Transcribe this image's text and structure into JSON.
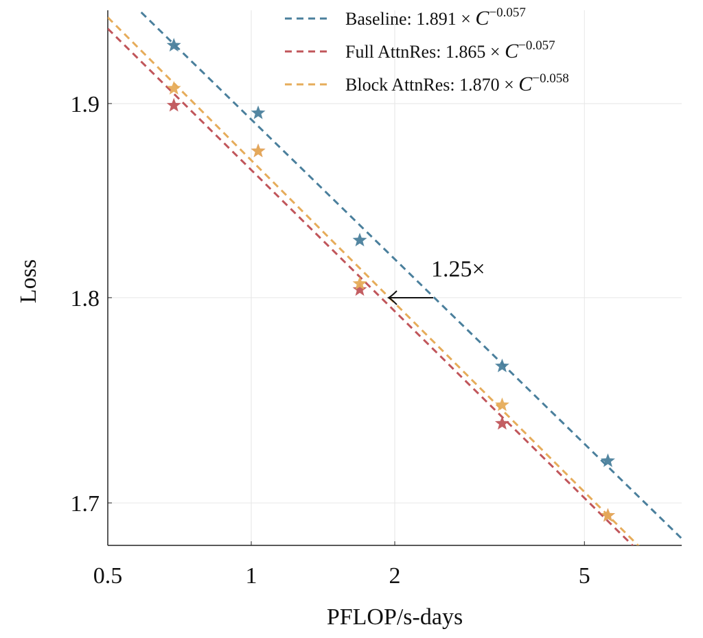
{
  "chart_data": {
    "type": "scatter",
    "x_label": "PFLOP/s-days",
    "y_label": "Loss",
    "x": [
      0.688,
      1.034,
      1.689,
      3.36,
      5.6
    ],
    "series": [
      {
        "name": "Baseline: 1.891 × C^−0.057",
        "color": "#4a7f9c",
        "values": [
          1.931,
          1.895,
          1.829,
          1.766,
          1.72
        ]
      },
      {
        "name": "Full AttnRes: 1.865 × C^−0.057",
        "color": "#c0555a",
        "values": [
          1.899,
          1.875,
          1.804,
          1.738,
          1.694
        ]
      },
      {
        "name": "Block AttnRes: 1.870 × C^−0.058",
        "color": "#e6ac5a",
        "values": [
          1.908,
          1.875,
          1.807,
          1.747,
          1.694
        ]
      }
    ],
    "annotation": "1.25×",
    "xlim": [
      0.5,
      8
    ],
    "ylim": [
      1.68,
      1.95
    ],
    "xticks": [
      0.5,
      1,
      2,
      5
    ],
    "yticks": [
      1.7,
      1.8,
      1.9
    ],
    "xscale": "log",
    "yscale": "log",
    "grid": true,
    "legend": "upper right"
  }
}
